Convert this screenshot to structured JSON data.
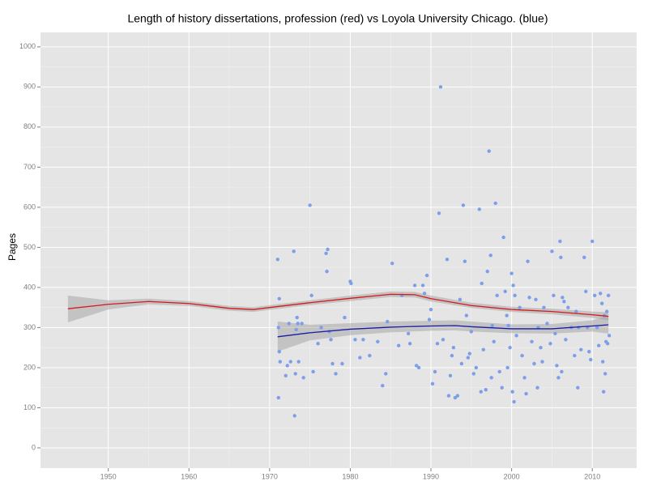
{
  "chart_data": {
    "type": "scatter",
    "title": "Length of history dissertations, profession (red) vs Loyola University Chicago. (blue)",
    "ylabel": "Pages",
    "xlim": [
      1941.6,
      2015.5
    ],
    "ylim": [
      -50.5,
      1036
    ],
    "xticks": [
      1950,
      1960,
      1970,
      1980,
      1990,
      2000,
      2010
    ],
    "yticks": [
      0,
      100,
      200,
      300,
      400,
      500,
      600,
      700,
      800,
      900,
      1000
    ],
    "grid": true,
    "point_color": "#7d9ee8",
    "band_color": "#999999",
    "x": [
      1971.0,
      1971.1,
      1971.2,
      1971.3,
      1971.1,
      1971.2,
      1972.0,
      1972.2,
      1972.4,
      1972.6,
      1973.0,
      1973.1,
      1973.2,
      1973.3,
      1973.4,
      1973.5,
      1973.6,
      1974.0,
      1974.2,
      1975.0,
      1975.2,
      1975.4,
      1976.0,
      1976.4,
      1977.0,
      1977.2,
      1977.1,
      1977.4,
      1977.6,
      1977.8,
      1978.2,
      1979.0,
      1979.3,
      1980.0,
      1980.1,
      1980.6,
      1981.2,
      1981.6,
      1982.4,
      1983.4,
      1984.0,
      1984.4,
      1984.6,
      1985.2,
      1986.0,
      1986.4,
      1987.2,
      1987.4,
      1988.0,
      1988.2,
      1988.5,
      1989.0,
      1989.2,
      1989.5,
      1989.8,
      1990.0,
      1990.2,
      1990.5,
      1990.8,
      1991.2,
      1991.0,
      1991.5,
      1992.0,
      1992.2,
      1992.4,
      1992.6,
      1992.8,
      1993.0,
      1993.3,
      1993.6,
      1993.8,
      1994.0,
      1994.2,
      1994.4,
      1994.6,
      1994.8,
      1995.0,
      1995.3,
      1995.6,
      1996.0,
      1996.3,
      1996.5,
      1996.2,
      1996.8,
      1997.2,
      1997.4,
      1997.0,
      1997.6,
      1997.8,
      1997.5,
      1998.0,
      1998.2,
      1998.5,
      1998.8,
      1999.0,
      1999.2,
      1999.4,
      1999.6,
      1999.8,
      1999.5,
      2000.0,
      2000.2,
      2000.4,
      2000.6,
      2000.1,
      2000.3,
      2001.0,
      2001.3,
      2001.6,
      2001.8,
      2002.0,
      2002.2,
      2002.5,
      2002.8,
      2003.0,
      2003.3,
      2003.6,
      2003.8,
      2003.2,
      2004.0,
      2004.4,
      2004.8,
      2005.0,
      2005.2,
      2005.4,
      2005.6,
      2005.8,
      2006.0,
      2006.1,
      2006.3,
      2006.5,
      2006.7,
      2006.2,
      2007.0,
      2007.4,
      2007.8,
      2008.0,
      2008.3,
      2008.6,
      2008.2,
      2009.0,
      2009.2,
      2009.4,
      2009.6,
      2009.8,
      2010.0,
      2010.3,
      2010.6,
      2010.8,
      2011.0,
      2011.2,
      2011.5,
      2011.7,
      2011.3,
      2012.0,
      2011.8,
      2012.1,
      2011.9,
      2011.6,
      2011.4
    ],
    "y": [
      470,
      300,
      240,
      215,
      125,
      372,
      180,
      205,
      310,
      215,
      490,
      80,
      185,
      295,
      325,
      310,
      215,
      310,
      175,
      605,
      380,
      190,
      260,
      300,
      485,
      495,
      440,
      290,
      270,
      210,
      185,
      210,
      325,
      415,
      410,
      270,
      225,
      270,
      230,
      265,
      155,
      185,
      315,
      460,
      255,
      380,
      285,
      260,
      405,
      205,
      200,
      405,
      385,
      430,
      320,
      345,
      160,
      190,
      260,
      900,
      585,
      270,
      470,
      130,
      180,
      230,
      250,
      125,
      130,
      370,
      210,
      605,
      465,
      330,
      225,
      235,
      290,
      185,
      200,
      595,
      410,
      245,
      140,
      145,
      740,
      480,
      440,
      305,
      265,
      175,
      610,
      380,
      190,
      150,
      525,
      390,
      330,
      305,
      250,
      200,
      435,
      405,
      380,
      280,
      140,
      115,
      350,
      230,
      175,
      135,
      465,
      375,
      265,
      210,
      370,
      300,
      250,
      215,
      150,
      350,
      310,
      260,
      490,
      380,
      285,
      205,
      175,
      515,
      475,
      375,
      365,
      270,
      190,
      350,
      300,
      230,
      340,
      300,
      245,
      150,
      475,
      390,
      300,
      240,
      220,
      515,
      380,
      300,
      255,
      385,
      360,
      330,
      265,
      215,
      380,
      340,
      280,
      260,
      185,
      140
    ],
    "series": [
      {
        "color": "#d7191c",
        "x": [
          1945,
          1950,
          1955,
          1960,
          1965,
          1968,
          1970,
          1975,
          1980,
          1985,
          1988,
          1990,
          1995,
          2000,
          2005,
          2010,
          2012
        ],
        "values": [
          347,
          358,
          365,
          360,
          348,
          345,
          350,
          362,
          373,
          383,
          382,
          372,
          355,
          345,
          340,
          332,
          328
        ],
        "lower": [
          313,
          345,
          358,
          354,
          342,
          339,
          344,
          356,
          366,
          376,
          375,
          365,
          349,
          339,
          333,
          324,
          318
        ],
        "upper": [
          380,
          368,
          372,
          366,
          354,
          351,
          356,
          368,
          380,
          390,
          389,
          380,
          362,
          352,
          347,
          340,
          338
        ]
      },
      {
        "color": "#1a1aa6",
        "x": [
          1971,
          1975,
          1980,
          1985,
          1990,
          1993,
          1995,
          2000,
          2005,
          2010,
          2012
        ],
        "values": [
          277,
          287,
          296,
          301,
          304,
          305,
          302,
          297,
          297,
          304,
          307
        ],
        "lower": [
          240,
          268,
          281,
          288,
          292,
          293,
          290,
          286,
          285,
          290,
          285
        ],
        "upper": [
          315,
          307,
          311,
          315,
          317,
          318,
          315,
          308,
          309,
          318,
          330
        ]
      }
    ]
  }
}
